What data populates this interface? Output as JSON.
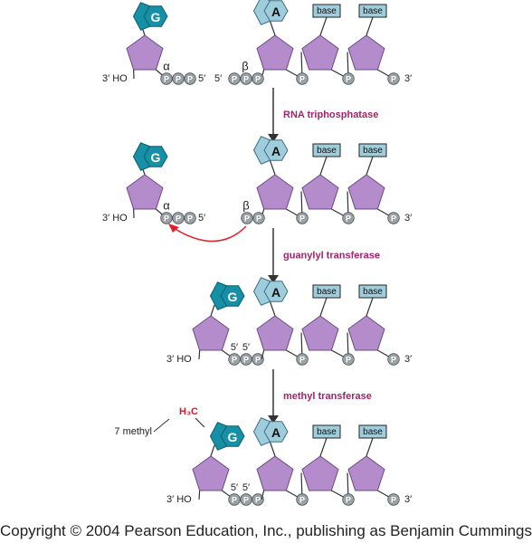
{
  "colors": {
    "sugar": "#b48ccc",
    "sugar_stroke": "#6a4a82",
    "guanine": "#1590a6",
    "guanine_stroke": "#0b5c6d",
    "adenine": "#9fcddc",
    "adenine_stroke": "#3a6e82",
    "base_box": "#9fcddc",
    "phosphate": "#9ba2a6",
    "phosphate_stroke": "#4d5357",
    "enzyme_text": "#a0246a",
    "red_arrow": "#e0202a",
    "methyl_text": "#d4192c",
    "line": "#333333"
  },
  "labels": {
    "G": "G",
    "A": "A",
    "base": "base",
    "P": "P",
    "three_ho": "3′ HO",
    "three_prime": "3′",
    "five_prime": "5′",
    "five": "5′",
    "alpha": "α",
    "beta": "β",
    "methyl_group": "H₃C",
    "seven_methyl": "7 methyl"
  },
  "steps": [
    {
      "enzyme": "RNA triphosphatase"
    },
    {
      "enzyme": "guanylyl transferase"
    },
    {
      "enzyme": "methyl transferase"
    }
  ],
  "footer": {
    "copyright": "Copyright © 2004 Pearson Education, Inc., publishing as Benjamin Cummings"
  }
}
